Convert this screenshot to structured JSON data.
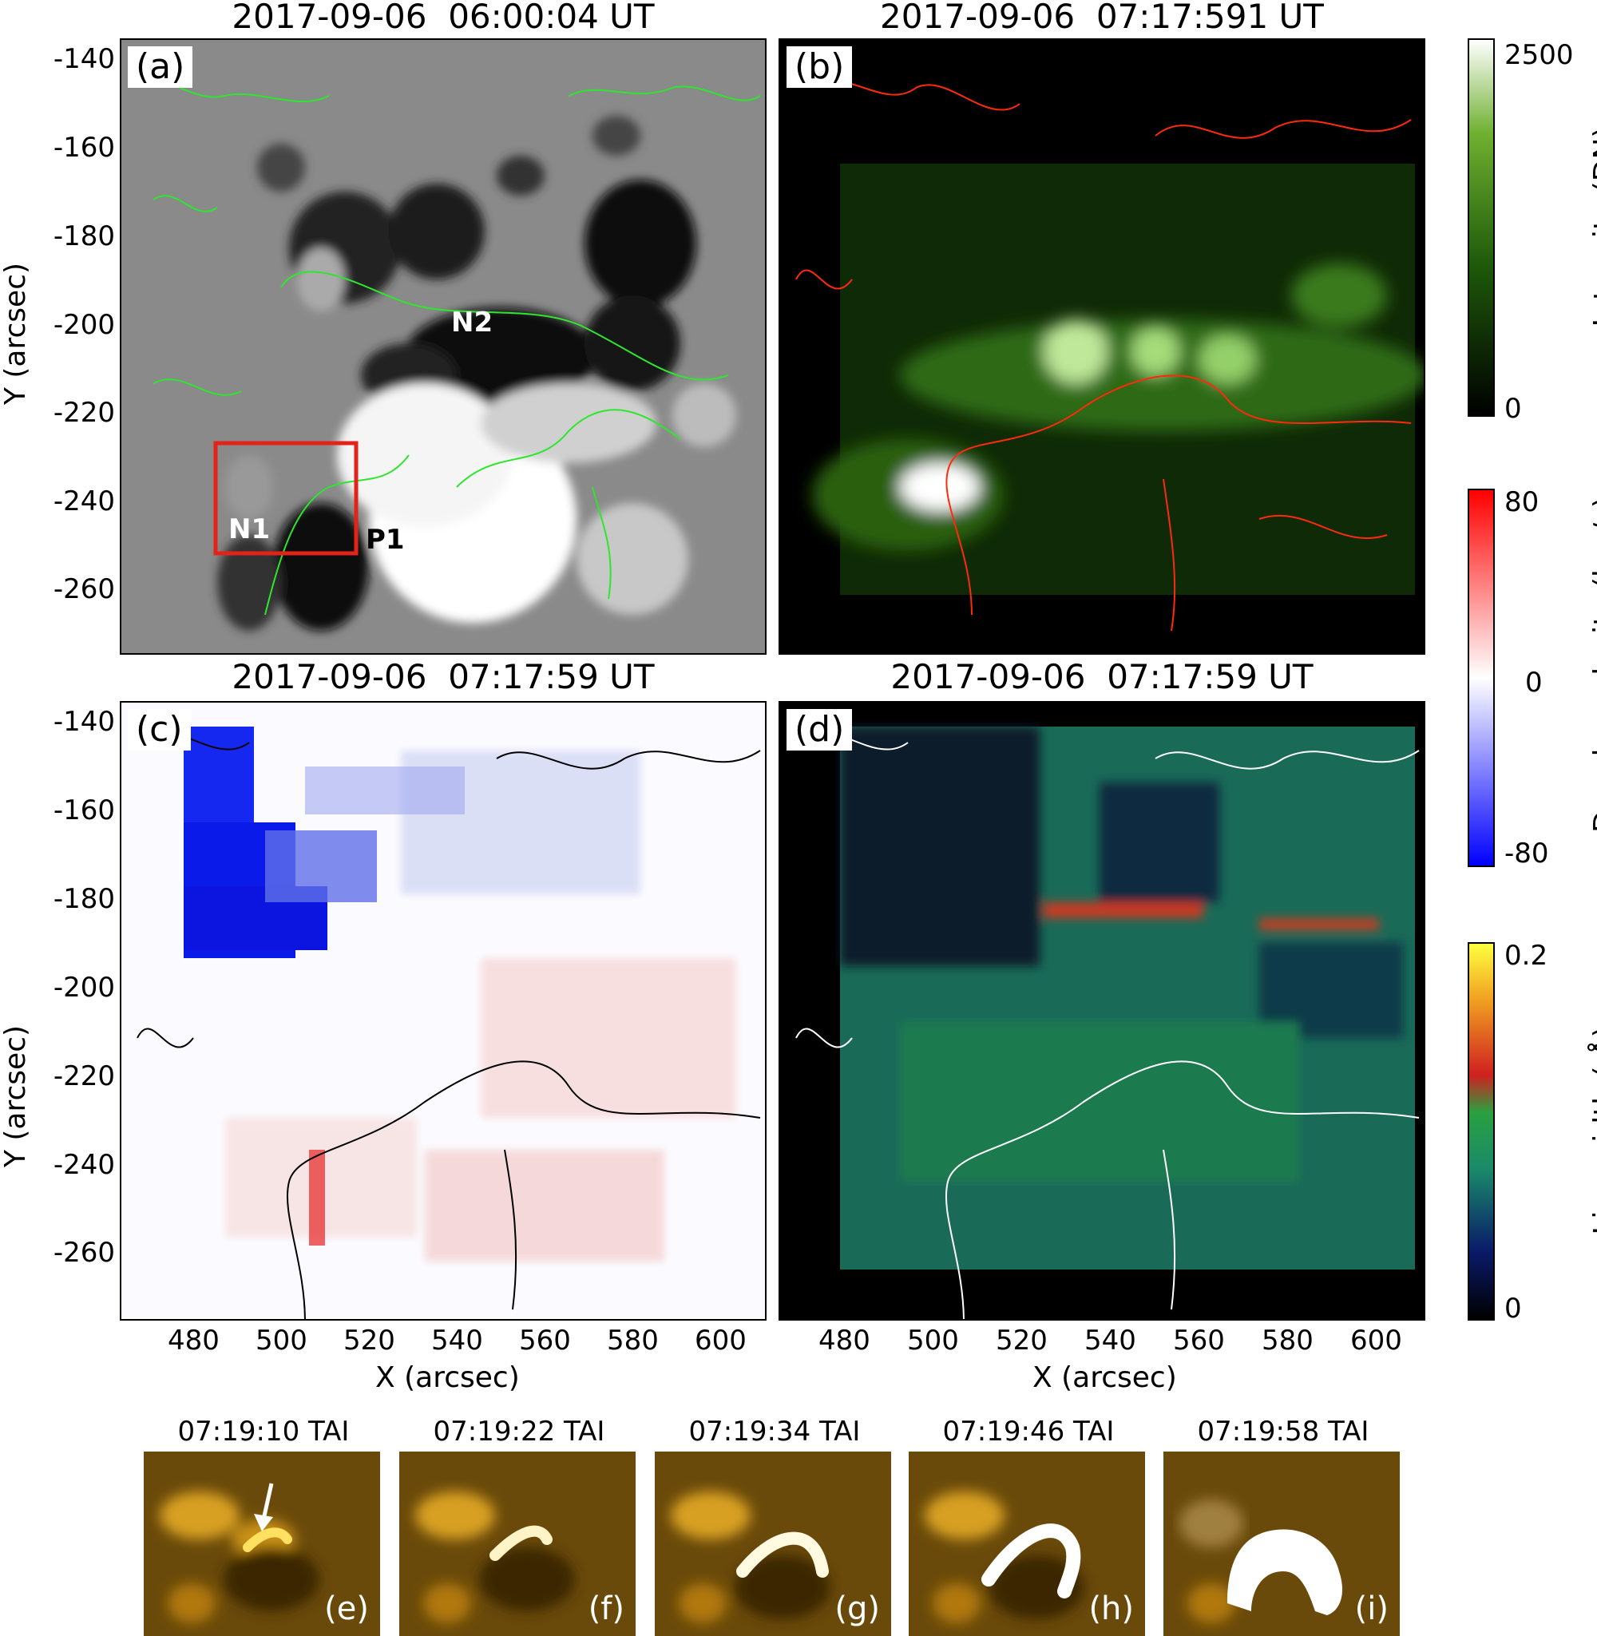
{
  "panels": {
    "a": {
      "title": "2017-09-06  06:00:04 UT",
      "label": "(a)",
      "regions": [
        "N2",
        "N1",
        "P1"
      ]
    },
    "b": {
      "title": "2017-09-06  07:17:591 UT",
      "label": "(b)"
    },
    "c": {
      "title": "2017-09-06  07:17:59 UT",
      "label": "(c)"
    },
    "d": {
      "title": "2017-09-06  07:17:59 UT",
      "label": "(d)"
    }
  },
  "axes": {
    "ylabel": "Y (arcsec)",
    "xlabel": "X (arcsec)",
    "yticks": [
      "-140",
      "-160",
      "-180",
      "-200",
      "-220",
      "-240",
      "-260"
    ],
    "xticks": [
      "480",
      "500",
      "520",
      "540",
      "560",
      "580",
      "600"
    ]
  },
  "colorbars": [
    {
      "label": "Intensity (DN)",
      "max": "2500",
      "min": "0",
      "colors": [
        "#000000",
        "#1e5a0a",
        "#6fb030",
        "#ffffff"
      ]
    },
    {
      "label": "Doppler velocity (km/s)",
      "max": "80",
      "mid": "0",
      "min": "-80",
      "colors": [
        "#0000ff",
        "#ffffff",
        "#ff0000"
      ]
    },
    {
      "label": "Line width ( Å)",
      "max": "0.2",
      "min": "0",
      "colors": [
        "#000000",
        "#0a1a6a",
        "#1a8a6a",
        "#2aa040",
        "#d02020",
        "#f0a020",
        "#ffff40"
      ]
    }
  ],
  "thumbnails": [
    {
      "time": "07:19:10 TAI",
      "label": "(e)"
    },
    {
      "time": "07:19:22 TAI",
      "label": "(f)"
    },
    {
      "time": "07:19:34 TAI",
      "label": "(g)"
    },
    {
      "time": "07:19:46 TAI",
      "label": "(h)"
    },
    {
      "time": "07:19:58 TAI",
      "label": "(i)"
    }
  ]
}
